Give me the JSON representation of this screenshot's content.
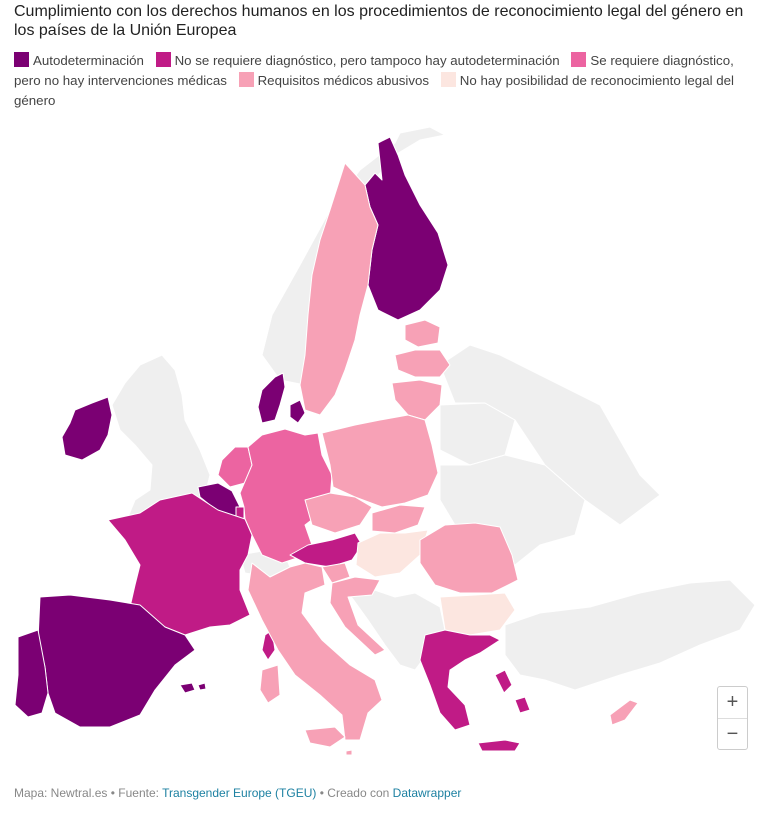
{
  "title": "Cumplimiento con los derechos humanos en los procedimientos de reconocimiento legal del género en los países de la Unión Europea",
  "legend": [
    {
      "label": "Autodeterminación",
      "color": "#7b0073"
    },
    {
      "label": "No se requiere diagnóstico, pero tampoco hay autodeterminación",
      "color": "#c01b86"
    },
    {
      "label": "Se requiere diagnóstico, pero no hay intervenciones médicas",
      "color": "#ec64a1"
    },
    {
      "label": "Requisitos médicos abusivos",
      "color": "#f7a1b6"
    },
    {
      "label": "No hay posibilidad de reconocimiento legal del género",
      "color": "#fce6e0"
    }
  ],
  "map_colors": {
    "non_eu": "#efefef",
    "border": "#ffffff"
  },
  "zoom": {
    "in_label": "+",
    "out_label": "−"
  },
  "footer": {
    "map_credit": "Mapa: Newtral.es",
    "separator": "•",
    "source_prefix": "Fuente:",
    "source_link": "Transgender Europe (TGEU)",
    "created_prefix": "Creado con",
    "created_link": "Datawrapper"
  }
}
